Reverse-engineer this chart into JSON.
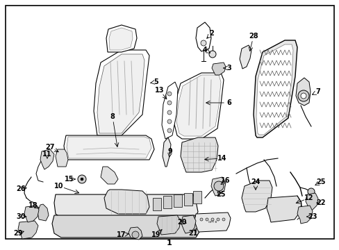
{
  "bg": "#ffffff",
  "border": "#000000",
  "line_color": "#000000",
  "gray_fill": "#e8e8e8",
  "dark_gray": "#888888"
}
